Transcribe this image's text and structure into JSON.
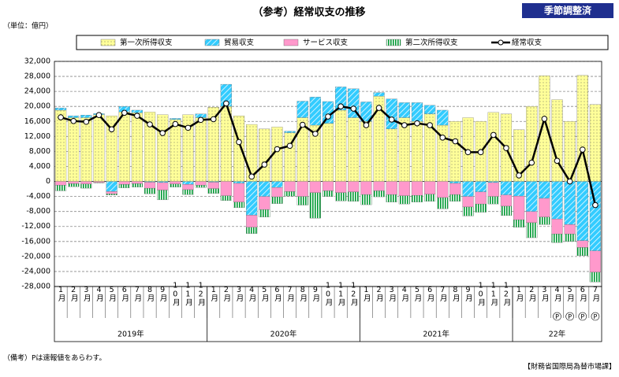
{
  "chart_data": {
    "type": "bar",
    "title": "（参考）経常収支の推移",
    "badge": "季節調整済",
    "unit_label": "（単位：億円）",
    "note": "（備考）Pは速報値をあらわす。",
    "source": "【財務省国際局為替市場課】",
    "stacked": true,
    "grid": true,
    "legend_position": "top",
    "categories": [
      "1月",
      "2月",
      "3月",
      "4月",
      "5月",
      "6月",
      "7月",
      "8月",
      "9月",
      "10月",
      "11月",
      "12月",
      "1月",
      "2月",
      "3月",
      "4月",
      "5月",
      "6月",
      "7月",
      "8月",
      "9月",
      "10月",
      "11月",
      "12月",
      "1月",
      "2月",
      "3月",
      "4月",
      "5月",
      "6月",
      "7月",
      "8月",
      "9月",
      "10月",
      "11月",
      "12月",
      "1月",
      "2月",
      "3月",
      "4月",
      "5月",
      "6月",
      "7月"
    ],
    "flags": [
      null,
      null,
      null,
      null,
      null,
      null,
      null,
      null,
      null,
      null,
      null,
      null,
      null,
      null,
      null,
      null,
      null,
      null,
      null,
      null,
      null,
      null,
      null,
      null,
      null,
      null,
      null,
      null,
      null,
      null,
      null,
      null,
      null,
      null,
      null,
      null,
      null,
      null,
      null,
      "P",
      "P",
      "P",
      "P"
    ],
    "groups": [
      {
        "label": "2019年",
        "count": 12
      },
      {
        "label": "2020年",
        "count": 12
      },
      {
        "label": "2021年",
        "count": 12
      },
      {
        "label": "22年",
        "count": 7
      }
    ],
    "ylim": [
      -28000,
      32000
    ],
    "yticks": [
      {
        "value": -28000,
        "label": "-28,000"
      },
      {
        "value": -24000,
        "label": "-24,000"
      },
      {
        "value": -20000,
        "label": "-20,000"
      },
      {
        "value": -16000,
        "label": "-16,000"
      },
      {
        "value": -12000,
        "label": "-12,000"
      },
      {
        "value": -8000,
        "label": "-8,000"
      },
      {
        "value": -4000,
        "label": "-4,000"
      },
      0,
      {
        "value": 4000,
        "label": "4,000"
      },
      {
        "value": 8000,
        "label": "8,000"
      },
      {
        "value": 12000,
        "label": "12,000"
      },
      {
        "value": 16000,
        "label": "16,000"
      },
      {
        "value": 20000,
        "label": "20,000"
      },
      {
        "value": 24000,
        "label": "24,000"
      },
      {
        "value": 28000,
        "label": "28,000"
      },
      {
        "value": 32000,
        "label": "32,000"
      }
    ],
    "series": [
      {
        "name": "第一次所得収支",
        "type": "bar",
        "color": "#ffff99",
        "pattern": "dots",
        "values": [
          19000,
          17000,
          17000,
          17800,
          17500,
          18500,
          18300,
          18500,
          17800,
          16500,
          17800,
          17000,
          19800,
          20000,
          17500,
          15200,
          14000,
          14500,
          13000,
          17000,
          15000,
          15500,
          19000,
          17000,
          16000,
          22700,
          14000,
          17000,
          16000,
          18000,
          15000,
          16000,
          17000,
          16000,
          18400,
          18000,
          13800,
          20000,
          28200,
          21800,
          16000,
          28300,
          20500
        ]
      },
      {
        "name": "貿易収支",
        "type": "bar",
        "color": "#33ccff",
        "pattern": "hatch",
        "values": [
          600,
          500,
          700,
          300,
          -2700,
          1500,
          700,
          -200,
          -300,
          300,
          -800,
          1000,
          -200,
          5900,
          -500,
          -9000,
          -4000,
          -1600,
          400,
          4400,
          7500,
          5800,
          6200,
          7700,
          5200,
          1000,
          8000,
          4000,
          5000,
          2300,
          4000,
          -500,
          -4000,
          -2800,
          -300,
          -3600,
          -3900,
          -8000,
          -4500,
          -10000,
          -11500,
          -15800,
          -18500
        ]
      },
      {
        "name": "サービス収支",
        "type": "bar",
        "color": "#ff99cc",
        "pattern": "solid",
        "values": [
          -1000,
          -600,
          -700,
          -300,
          -600,
          -800,
          -600,
          -1600,
          -2000,
          -700,
          -1400,
          -1000,
          -1700,
          -3800,
          -5000,
          -3200,
          -3500,
          -2500,
          -2700,
          -4000,
          -3000,
          -2500,
          -3000,
          -2800,
          -3500,
          -2500,
          -3500,
          -3800,
          -3700,
          -3400,
          -4300,
          -3000,
          -2800,
          -3200,
          -3700,
          -3000,
          -6300,
          -3000,
          -5000,
          -4000,
          -2500,
          -1800,
          -5700
        ]
      },
      {
        "name": "第二次所得収支",
        "type": "bar",
        "color": "#009933",
        "pattern": "stripes",
        "values": [
          -1500,
          -800,
          -1100,
          -100,
          -300,
          -900,
          -900,
          -1500,
          -2600,
          -800,
          -1300,
          -600,
          -1300,
          -1300,
          -1500,
          -1700,
          -2000,
          -1800,
          -1200,
          -2300,
          -6800,
          -1500,
          -2200,
          -2500,
          -2700,
          -1600,
          -2000,
          -2200,
          -1800,
          -1900,
          -3000,
          -1800,
          -2400,
          -2200,
          -2000,
          -2500,
          -2000,
          -4000,
          -2000,
          -2300,
          -2000,
          -2200,
          -2600
        ]
      },
      {
        "name": "経常収支",
        "type": "line",
        "color": "#000000",
        "values": [
          17100,
          16100,
          15900,
          17700,
          13900,
          18300,
          17500,
          15200,
          12900,
          15300,
          14300,
          16400,
          16600,
          20800,
          10500,
          1300,
          4500,
          8600,
          9500,
          15100,
          12700,
          17300,
          20000,
          19400,
          15000,
          19600,
          16500,
          15000,
          15500,
          15000,
          11700,
          10700,
          7800,
          7800,
          12400,
          8900,
          1600,
          5000,
          16700,
          5500,
          0,
          8500,
          -6300
        ]
      }
    ]
  }
}
